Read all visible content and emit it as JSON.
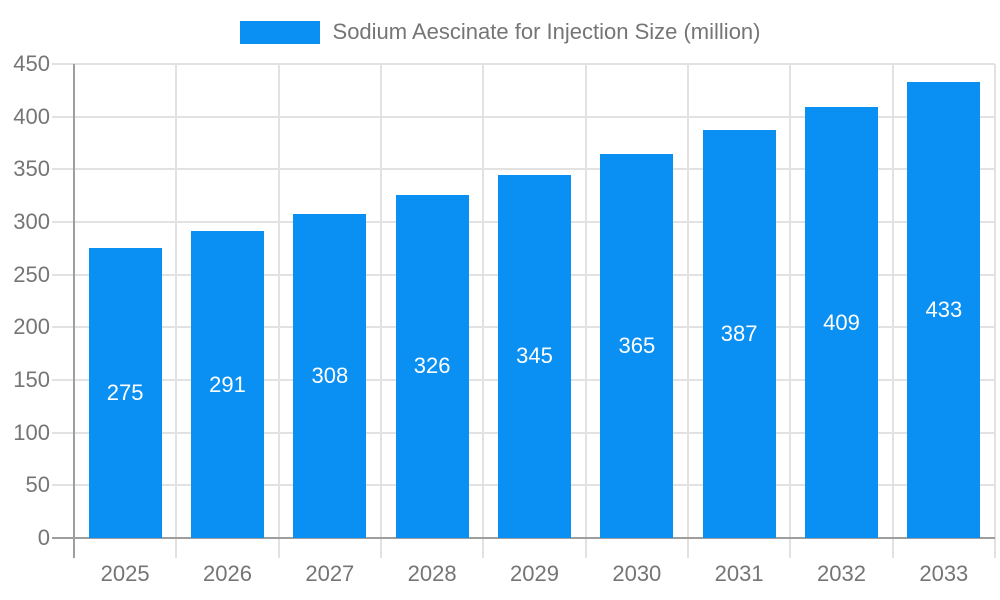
{
  "legend": {
    "label": "Sodium Aescinate for Injection Size (million)"
  },
  "colors": {
    "bar": "#0a8ff2",
    "grid": "#e2e2e2",
    "axis": "#9e9e9e",
    "tick_text": "#757575",
    "bar_label_text": "#ffffff",
    "background": "#ffffff"
  },
  "chart_data": {
    "type": "bar",
    "title": "Sodium Aescinate for Injection Size (million)",
    "categories": [
      "2025",
      "2026",
      "2027",
      "2028",
      "2029",
      "2030",
      "2031",
      "2032",
      "2033"
    ],
    "series": [
      {
        "name": "Sodium Aescinate for Injection Size (million)",
        "values": [
          275,
          291,
          308,
          326,
          345,
          365,
          387,
          409,
          433
        ]
      }
    ],
    "values": [
      275,
      291,
      308,
      326,
      345,
      365,
      387,
      409,
      433
    ],
    "bar_value_labels": [
      "275",
      "291",
      "308",
      "326",
      "345",
      "365",
      "387",
      "409",
      "433"
    ],
    "xlabel": "",
    "ylabel": "",
    "ylim": [
      0,
      450
    ],
    "ytick_step": 50,
    "ytick_labels": [
      "0",
      "50",
      "100",
      "150",
      "200",
      "250",
      "300",
      "350",
      "400",
      "450"
    ],
    "grid": true,
    "legend_position": "top-center",
    "bar_labels_inside": true
  }
}
